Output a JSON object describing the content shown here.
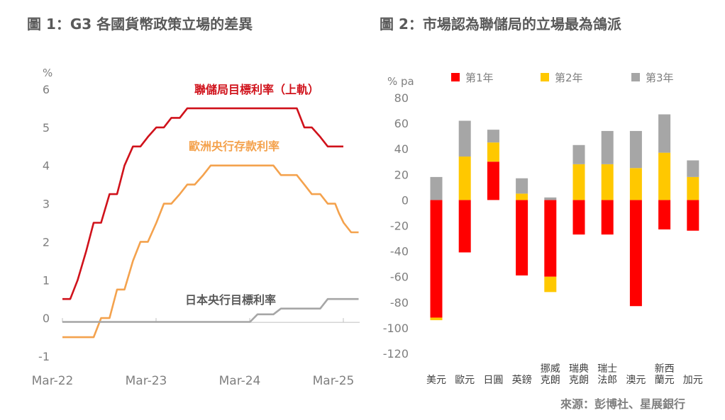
{
  "charts_header": [
    {
      "title": "圖 1：G3 各國貨幣政策立場的差異"
    },
    {
      "title": "圖 2：市場認為聯儲局的立場最為鴿派"
    }
  ],
  "source": "來源：彭博社、星展銀行",
  "colors": {
    "fed": "#d0121b",
    "ecb": "#f4a24d",
    "boj": "#a6a6a6",
    "yr1": "#ff0000",
    "yr2": "#ffc800",
    "yr3": "#a6a6a6",
    "axis_text": "#7f7f7f"
  },
  "chart_data": [
    {
      "type": "line",
      "title": "圖 1：G3 各國貨幣政策立場的差異",
      "ylabel": "%",
      "ylim": [
        -1,
        6
      ],
      "yticks": [
        "-1",
        "0",
        "1",
        "2",
        "3",
        "4",
        "5",
        "6"
      ],
      "xlim": [
        2022.167,
        2025.167
      ],
      "xticks": [
        {
          "label": "Mar-22",
          "x": 2022.167
        },
        {
          "label": "Mar-23",
          "x": 2023.167
        },
        {
          "label": "Mar-24",
          "x": 2024.167
        },
        {
          "label": "Mar-25",
          "x": 2025.167
        }
      ],
      "grid": false,
      "series": [
        {
          "name": "聯儲局目標利率（上軌）",
          "color": "#d0121b",
          "points": [
            [
              2022.167,
              0.5
            ],
            [
              2022.25,
              0.5
            ],
            [
              2022.33,
              1.0
            ],
            [
              2022.42,
              1.75
            ],
            [
              2022.5,
              2.5
            ],
            [
              2022.58,
              2.5
            ],
            [
              2022.67,
              3.25
            ],
            [
              2022.75,
              3.25
            ],
            [
              2022.83,
              4.0
            ],
            [
              2022.92,
              4.5
            ],
            [
              2023.0,
              4.5
            ],
            [
              2023.08,
              4.75
            ],
            [
              2023.17,
              5.0
            ],
            [
              2023.25,
              5.0
            ],
            [
              2023.33,
              5.25
            ],
            [
              2023.42,
              5.25
            ],
            [
              2023.5,
              5.5
            ],
            [
              2024.67,
              5.5
            ],
            [
              2024.75,
              5.0
            ],
            [
              2024.83,
              5.0
            ],
            [
              2024.92,
              4.75
            ],
            [
              2025.0,
              4.5
            ],
            [
              2025.167,
              4.5
            ]
          ]
        },
        {
          "name": "歐洲央行存款利率",
          "color": "#f4a24d",
          "points": [
            [
              2022.167,
              -0.5
            ],
            [
              2022.5,
              -0.5
            ],
            [
              2022.58,
              0.0
            ],
            [
              2022.67,
              0.0
            ],
            [
              2022.75,
              0.75
            ],
            [
              2022.83,
              0.75
            ],
            [
              2022.92,
              1.5
            ],
            [
              2023.0,
              2.0
            ],
            [
              2023.08,
              2.0
            ],
            [
              2023.17,
              2.5
            ],
            [
              2023.25,
              3.0
            ],
            [
              2023.33,
              3.0
            ],
            [
              2023.42,
              3.25
            ],
            [
              2023.5,
              3.5
            ],
            [
              2023.58,
              3.5
            ],
            [
              2023.67,
              3.75
            ],
            [
              2023.75,
              4.0
            ],
            [
              2024.42,
              4.0
            ],
            [
              2024.5,
              3.75
            ],
            [
              2024.67,
              3.75
            ],
            [
              2024.75,
              3.5
            ],
            [
              2024.83,
              3.25
            ],
            [
              2024.92,
              3.25
            ],
            [
              2025.0,
              3.0
            ],
            [
              2025.08,
              3.0
            ],
            [
              2025.12,
              2.75
            ],
            [
              2025.17,
              2.5
            ],
            [
              2025.25,
              2.25
            ],
            [
              2025.33,
              2.25
            ]
          ]
        },
        {
          "name": "日本央行目標利率",
          "color": "#a6a6a6",
          "points": [
            [
              2022.167,
              -0.1
            ],
            [
              2024.17,
              -0.1
            ],
            [
              2024.25,
              0.1
            ],
            [
              2024.42,
              0.1
            ],
            [
              2024.5,
              0.25
            ],
            [
              2024.92,
              0.25
            ],
            [
              2025.0,
              0.5
            ],
            [
              2025.33,
              0.5
            ]
          ]
        }
      ]
    },
    {
      "type": "bar",
      "stacked": true,
      "title": "圖 2：市場認為聯儲局的立場最為鴿派",
      "ylabel": "% pa",
      "ylim": [
        -120,
        80
      ],
      "yticks": [
        "80",
        "60",
        "40",
        "20",
        "0",
        "-20",
        "-40",
        "-60",
        "-80",
        "-100",
        "-120"
      ],
      "legend": "top",
      "categories": [
        [
          "美元"
        ],
        [
          "歐元"
        ],
        [
          "日圓"
        ],
        [
          "英鎊"
        ],
        [
          "挪威",
          "克朗"
        ],
        [
          "瑞典",
          "克朗"
        ],
        [
          "瑞士",
          "法郎"
        ],
        [
          "澳元"
        ],
        [
          "新西",
          "蘭元"
        ],
        [
          "加元"
        ]
      ],
      "series": [
        {
          "name": "第1年",
          "color": "#ff0000",
          "values": [
            -92,
            -41,
            30,
            -59,
            -60,
            -27,
            -27,
            -83,
            -23,
            -24
          ]
        },
        {
          "name": "第2年",
          "color": "#ffc800",
          "values": [
            -2,
            34,
            15,
            5,
            -12,
            28,
            28,
            25,
            37,
            18
          ]
        },
        {
          "name": "第3年",
          "color": "#a6a6a6",
          "values": [
            18,
            28,
            10,
            12,
            2,
            15,
            26,
            29,
            30,
            13
          ]
        }
      ]
    }
  ]
}
